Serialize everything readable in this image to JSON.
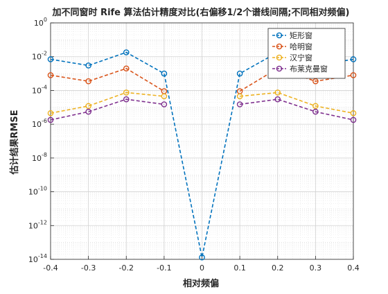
{
  "chart_data": {
    "type": "line",
    "title": "加不同窗时 Rife 算法估计精度对比(右偏移1/2个谱线间隔;不同相对频偏)",
    "xlabel": "相对频偏",
    "ylabel": "估计结果RMSE",
    "x_scale": "linear",
    "y_scale": "log",
    "xlim": [
      -0.4,
      0.4
    ],
    "ylim_exponents": [
      -14,
      0
    ],
    "x_ticks": [
      "-0.4",
      "-0.3",
      "-0.2",
      "-0.1",
      "0",
      "0.1",
      "0.2",
      "0.3",
      "0.4"
    ],
    "y_tick_exponents": [
      "0",
      "-2",
      "-4",
      "-6",
      "-8",
      "-10",
      "-12",
      "-14"
    ],
    "y_tick_base": "10",
    "grid": true,
    "legend_position": "top-right",
    "x": [
      -0.4,
      -0.3,
      -0.2,
      -0.1,
      0,
      0.1,
      0.2,
      0.3,
      0.4
    ],
    "series": [
      {
        "name": "矩形窗",
        "color": "#0072BD",
        "values": [
          0.007,
          0.003,
          0.018,
          0.001,
          1.3e-14,
          0.001,
          0.018,
          0.003,
          0.007
        ]
      },
      {
        "name": "哈明窗",
        "color": "#D95319",
        "values": [
          0.0008,
          0.00035,
          0.002,
          9e-05,
          null,
          9e-05,
          0.002,
          0.00035,
          0.0008
        ]
      },
      {
        "name": "汉宁窗",
        "color": "#EDB120",
        "values": [
          4.5e-06,
          1.2e-05,
          7.5e-05,
          4.5e-05,
          null,
          4.5e-05,
          7.5e-05,
          1.2e-05,
          4.5e-06
        ]
      },
      {
        "name": "布莱克曼窗",
        "color": "#7E2F8E",
        "values": [
          1.8e-06,
          5.5e-06,
          3e-05,
          1.5e-05,
          null,
          1.5e-05,
          3e-05,
          5.5e-06,
          1.8e-06
        ]
      }
    ]
  }
}
